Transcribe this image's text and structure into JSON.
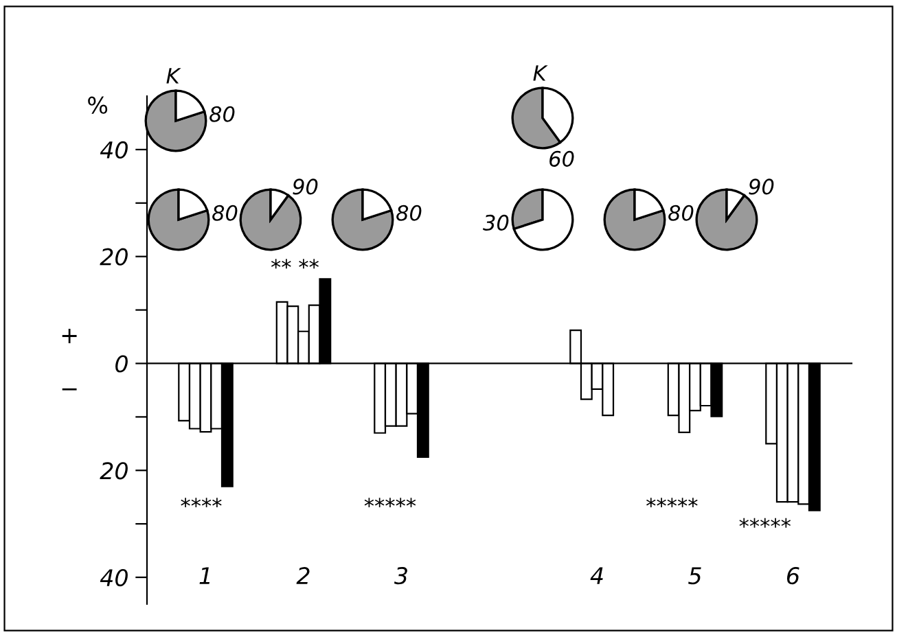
{
  "chart_data": [
    {
      "type": "bar",
      "ylabel": "%",
      "categories": [
        "1",
        "2",
        "3",
        null,
        "4",
        "5",
        "6"
      ],
      "series": [
        {
          "color": "#ffffff",
          "values": [
            -10.7,
            11.5,
            -13,
            null,
            6.2,
            -9.7,
            -15
          ]
        },
        {
          "color": "#ffffff",
          "values": [
            -12.2,
            10.7,
            -11.7,
            null,
            -6.7,
            -12.9,
            -25.9
          ]
        },
        {
          "color": "#ffffff",
          "values": [
            -12.8,
            6,
            -11.7,
            null,
            -4.8,
            -8.8,
            -25.9
          ]
        },
        {
          "color": "#ffffff",
          "values": [
            -12.2,
            10.9,
            -9.4,
            null,
            -9.7,
            -7.9,
            -26.3
          ]
        },
        {
          "color": "#000000",
          "values": [
            -23,
            15.8,
            -17.5,
            null,
            null,
            -9.9,
            -27.5
          ]
        }
      ],
      "ylim": [
        -45,
        50
      ],
      "yticks": [
        {
          "value": -40,
          "label": "40"
        },
        {
          "value": -30,
          "label": null
        },
        {
          "value": -20,
          "label": "20"
        },
        {
          "value": -10,
          "label": null
        },
        {
          "value": 0,
          "label": "0"
        },
        {
          "value": 10,
          "label": null
        },
        20,
        {
          "value": 30,
          "label": null
        },
        40
      ],
      "annotations": [
        "+",
        "−",
        "****",
        "** **",
        "*****",
        "*****",
        "*****"
      ]
    },
    {
      "type": "pie",
      "title": "K",
      "values": [
        80,
        20
      ],
      "colors": [
        "#9a9a9a",
        "#ffffff"
      ],
      "value_labels": [
        "80",
        null
      ]
    },
    {
      "type": "pie",
      "title": "K",
      "values": [
        60,
        40
      ],
      "colors": [
        "#9a9a9a",
        "#ffffff"
      ],
      "value_labels": [
        "60",
        null
      ]
    },
    {
      "type": "pie",
      "values": [
        80,
        20
      ],
      "colors": [
        "#9a9a9a",
        "#ffffff"
      ],
      "value_labels": [
        "80",
        null
      ]
    },
    {
      "type": "pie",
      "values": [
        90,
        10
      ],
      "colors": [
        "#9a9a9a",
        "#ffffff"
      ],
      "value_labels": [
        "90",
        null
      ]
    },
    {
      "type": "pie",
      "values": [
        80,
        20
      ],
      "colors": [
        "#9a9a9a",
        "#ffffff"
      ],
      "value_labels": [
        "80",
        null
      ]
    },
    {
      "type": "pie",
      "values": [
        30,
        70
      ],
      "colors": [
        "#9a9a9a",
        "#ffffff"
      ],
      "value_labels": [
        "30",
        null
      ]
    },
    {
      "type": "pie",
      "values": [
        80,
        20
      ],
      "colors": [
        "#9a9a9a",
        "#ffffff"
      ],
      "value_labels": [
        "80",
        null
      ]
    },
    {
      "type": "pie",
      "values": [
        90,
        10
      ],
      "colors": [
        "#9a9a9a",
        "#ffffff"
      ],
      "value_labels": [
        "90",
        null
      ]
    }
  ]
}
